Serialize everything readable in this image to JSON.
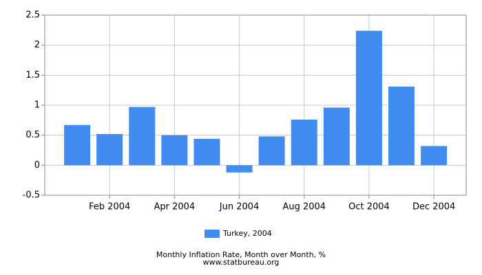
{
  "chart_data": {
    "type": "bar",
    "title": "Monthly Inflation Rate, Month over Month, %",
    "subtitle": "www.statbureau.org",
    "categories": [
      null,
      "Feb 2004",
      null,
      "Apr 2004",
      null,
      "Jun 2004",
      null,
      "Aug 2004",
      null,
      "Oct 2004",
      null,
      "Dec 2004"
    ],
    "series": [
      {
        "name": "Turkey, 2004",
        "color": "#418cf0",
        "values": [
          0.67,
          0.52,
          0.97,
          0.5,
          0.44,
          -0.12,
          0.48,
          0.76,
          0.96,
          2.24,
          1.31,
          0.32
        ]
      }
    ],
    "ylim": [
      -0.5,
      2.5
    ],
    "yticks": [
      -0.5,
      0,
      0.5,
      1,
      1.5,
      2,
      2.5
    ],
    "grid": true,
    "legend": "bottom"
  }
}
